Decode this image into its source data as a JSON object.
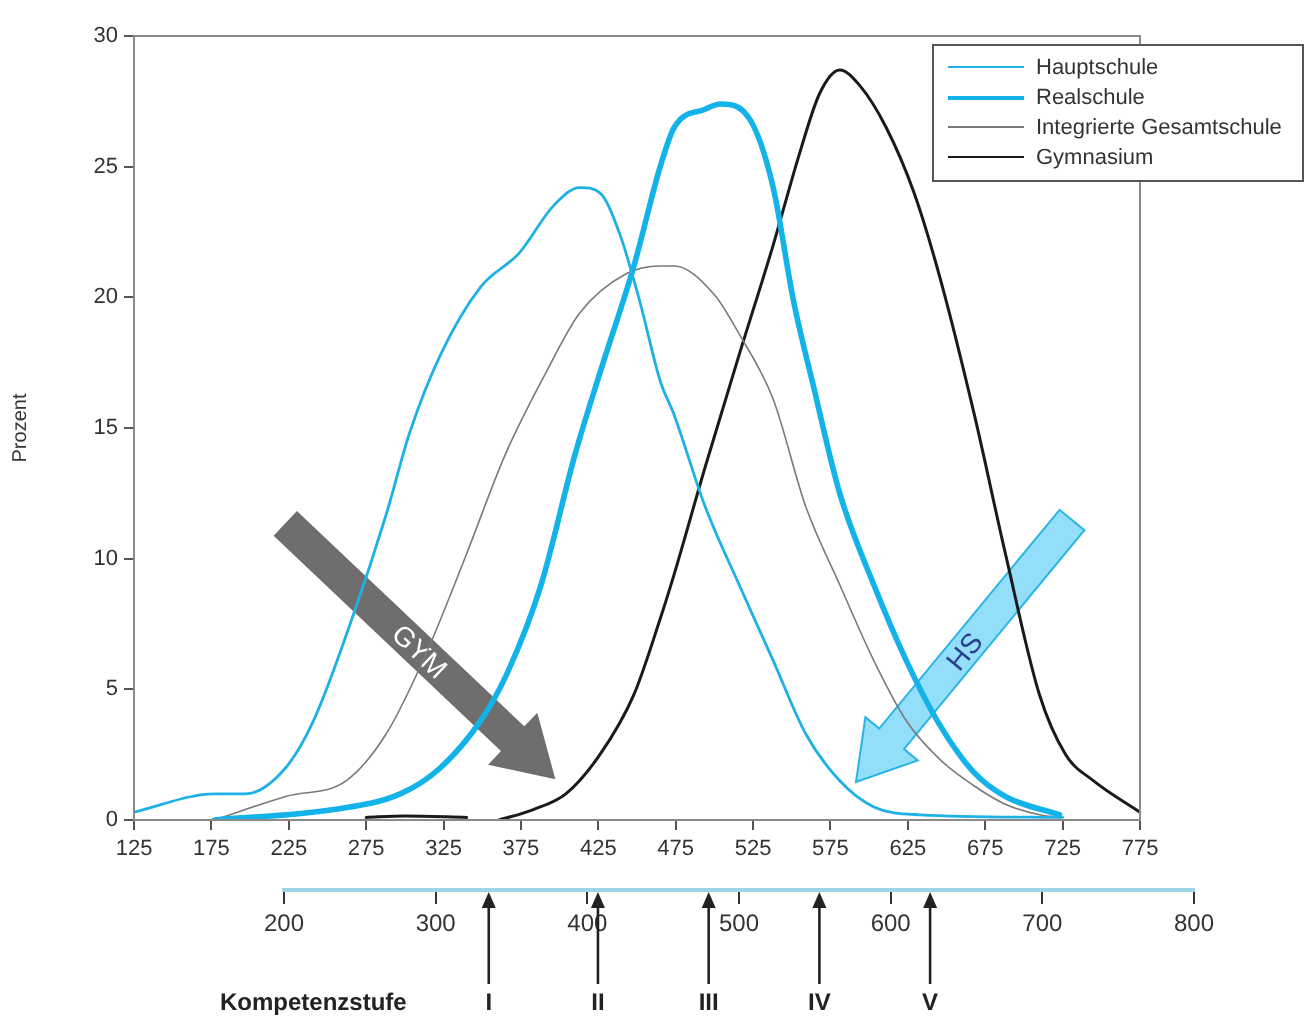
{
  "chart_data": {
    "type": "line",
    "ylabel": "Prozent",
    "xlim": [
      125,
      775
    ],
    "xticks": [
      125,
      175,
      225,
      275,
      325,
      375,
      425,
      475,
      525,
      575,
      625,
      675,
      725,
      775
    ],
    "ylim": [
      0,
      30
    ],
    "yticks": [
      0,
      5,
      10,
      15,
      20,
      25,
      30
    ],
    "x2lim": [
      200,
      800
    ],
    "x2ticks": [
      200,
      300,
      400,
      500,
      600,
      700,
      800
    ],
    "grid": false,
    "legend": "top right",
    "marker": "none",
    "line_style": "solid",
    "series": [
      {
        "name": "Hauptschule",
        "color": "#1fb1e6",
        "x": [
          125,
          177,
          197,
          223,
          241,
          267,
          288,
          303,
          323,
          349,
          374,
          396,
          413,
          426,
          439,
          452,
          465,
          474,
          494,
          516,
          538,
          559,
          581,
          603,
          633,
          725
        ],
        "values": [
          0.3,
          1.0,
          1.0,
          2.0,
          3.8,
          7.9,
          11.7,
          14.8,
          17.8,
          20.4,
          21.7,
          23.5,
          24.2,
          24.0,
          22.4,
          19.8,
          16.8,
          15.5,
          12.0,
          9.0,
          6.1,
          3.3,
          1.5,
          0.5,
          0.2,
          0.1
        ]
      },
      {
        "name": "Realschule",
        "color": "#13b3ea",
        "x": [
          177,
          254,
          297,
          323,
          349,
          366,
          388,
          410,
          426,
          448,
          465,
          474,
          494,
          504,
          523,
          538,
          551,
          564,
          581,
          603,
          624,
          646,
          668,
          688,
          723
        ],
        "values": [
          0,
          0.4,
          1.0,
          2.0,
          3.8,
          5.6,
          9.0,
          14.0,
          17.1,
          21.2,
          25.0,
          26.5,
          27.2,
          27.4,
          26.8,
          24.2,
          19.9,
          16.6,
          12.5,
          9.0,
          6.1,
          3.6,
          1.8,
          0.9,
          0.2
        ]
      },
      {
        "name": "Integrierte Gesamtschule",
        "color": "#7a7a7a",
        "x": [
          177,
          223,
          262,
          288,
          314,
          340,
          365,
          391,
          413,
          443,
          465,
          474,
          500,
          516,
          538,
          559,
          581,
          603,
          624,
          646,
          668,
          688,
          710,
          723
        ],
        "values": [
          0,
          0.9,
          1.5,
          3.3,
          6.4,
          10.2,
          14.0,
          17.1,
          19.4,
          20.9,
          21.2,
          21.2,
          20.1,
          18.6,
          16.1,
          12.0,
          9.0,
          6.1,
          3.8,
          2.3,
          1.3,
          0.6,
          0.2,
          0.1
        ]
      },
      {
        "name": "Gymnasium",
        "color": "#1a1a1a",
        "x": [
          275,
          300,
          340,
          350,
          361,
          383,
          404,
          426,
          448,
          465,
          474,
          494,
          516,
          538,
          555,
          568,
          581,
          594,
          611,
          629,
          646,
          668,
          688,
          710,
          727,
          745,
          775
        ],
        "values": [
          0.1,
          0.15,
          0.1,
          null,
          0,
          0.4,
          1.0,
          2.5,
          4.8,
          7.7,
          9.4,
          13.5,
          17.8,
          22.0,
          25.5,
          27.8,
          28.7,
          28.1,
          26.5,
          24.0,
          20.7,
          15.5,
          10.2,
          4.8,
          2.5,
          1.5,
          0.3
        ]
      }
    ],
    "ref_lines": [
      {
        "axis": "x2",
        "value": 335,
        "label": "I"
      },
      {
        "axis": "x2",
        "value": 407,
        "label": "II"
      },
      {
        "axis": "x2",
        "value": 480,
        "label": "III"
      },
      {
        "axis": "x2",
        "value": 553,
        "label": "IV"
      },
      {
        "axis": "x2",
        "value": 626,
        "label": "V"
      }
    ],
    "annotations": [
      "GYM",
      "HS",
      "Kompetenzstufe"
    ]
  }
}
